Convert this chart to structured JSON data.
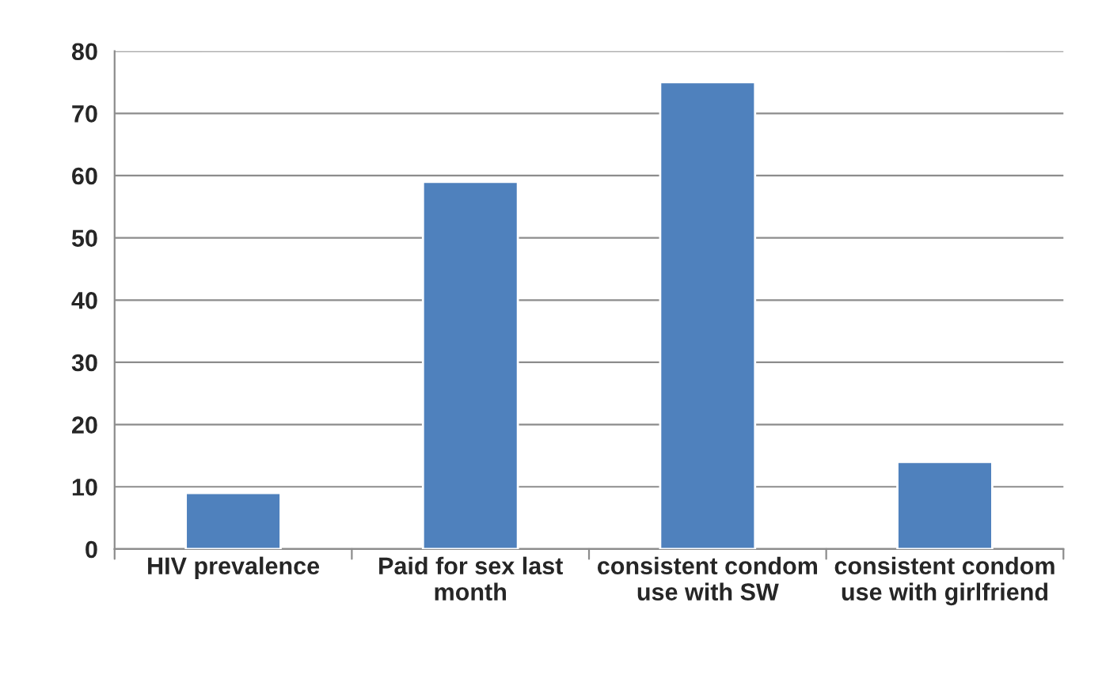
{
  "chart_data": {
    "type": "bar",
    "categories": [
      "HIV prevalence",
      "Paid for sex last month",
      "consistent condom use with SW",
      "consistent condom use with girlfriend"
    ],
    "values": [
      9,
      59,
      75,
      14
    ],
    "color": "#4f81bd",
    "ylim": [
      0,
      80
    ],
    "yticks": [
      0,
      10,
      20,
      30,
      40,
      50,
      60,
      70,
      80
    ],
    "grid": "y",
    "legend": false
  }
}
